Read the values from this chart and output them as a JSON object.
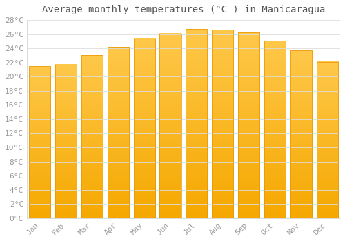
{
  "title": "Average monthly temperatures (°C ) in Manicaragua",
  "months": [
    "Jan",
    "Feb",
    "Mar",
    "Apr",
    "May",
    "Jun",
    "Jul",
    "Aug",
    "Sep",
    "Oct",
    "Nov",
    "Dec"
  ],
  "values": [
    21.5,
    21.7,
    23.0,
    24.2,
    25.4,
    26.1,
    26.7,
    26.6,
    26.3,
    25.1,
    23.7,
    22.1
  ],
  "bar_color_top": "#FFC84A",
  "bar_color_bottom": "#F5A800",
  "bar_edge_color": "#E89500",
  "ylim": [
    0,
    28
  ],
  "ytick_step": 2,
  "background_color": "#ffffff",
  "grid_color": "#dddddd",
  "title_fontsize": 10,
  "tick_fontsize": 8,
  "font_family": "monospace",
  "tick_color": "#999999",
  "title_color": "#555555"
}
